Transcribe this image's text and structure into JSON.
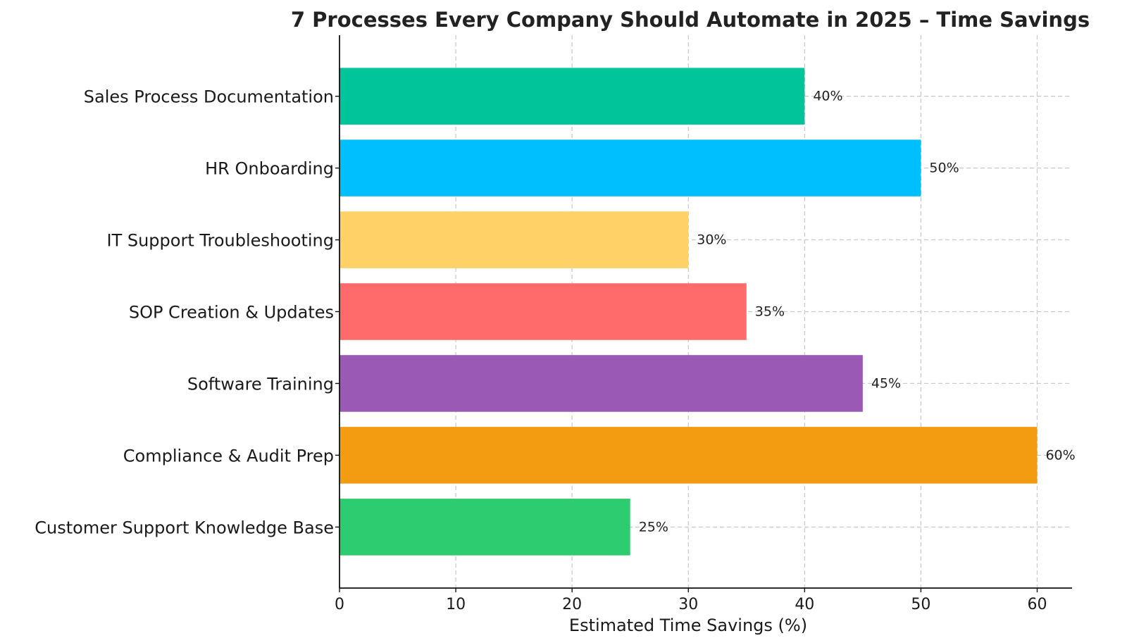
{
  "chart_data": {
    "type": "bar",
    "orientation": "horizontal",
    "title": "7 Processes Every Company Should Automate in 2025 – Time Savings",
    "xlabel": "Estimated Time Savings (%)",
    "ylabel": "",
    "xlim": [
      0,
      63
    ],
    "xticks": [
      0,
      10,
      20,
      30,
      40,
      50,
      60
    ],
    "grid": true,
    "categories": [
      "Sales Process Documentation",
      "HR Onboarding",
      "IT Support Troubleshooting",
      "SOP Creation & Updates",
      "Software Training",
      "Compliance & Audit Prep",
      "Customer Support Knowledge Base"
    ],
    "values": [
      40,
      50,
      30,
      35,
      45,
      60,
      25
    ],
    "value_labels": [
      "40%",
      "50%",
      "30%",
      "35%",
      "45%",
      "60%",
      "25%"
    ],
    "colors": [
      "#00c49a",
      "#00bfff",
      "#ffd166",
      "#ff6b6b",
      "#9b59b6",
      "#f39c12",
      "#2ecc71"
    ]
  }
}
